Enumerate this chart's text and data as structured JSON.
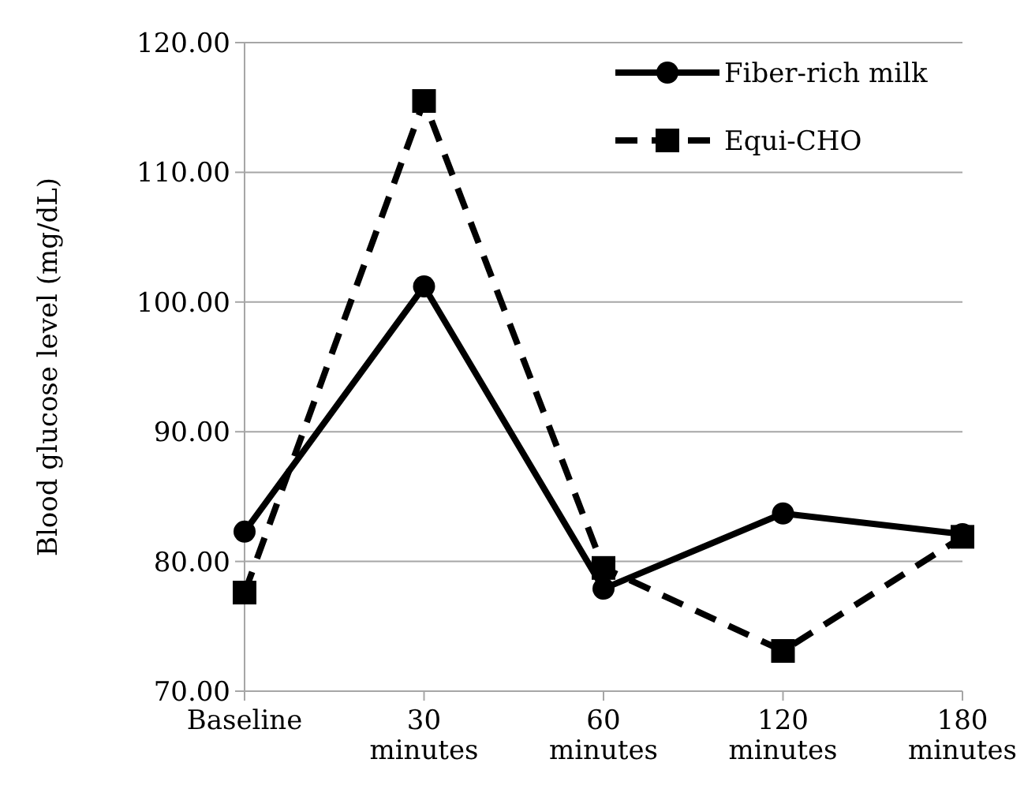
{
  "chart_data": {
    "type": "line",
    "ylabel": "Blood glucose level (mg/dL)",
    "categories": [
      "Baseline",
      "30 minutes",
      "60 minutes",
      "120 minutes",
      "180 minutes"
    ],
    "series": [
      {
        "name": "Fiber-rich milk",
        "color": "#000000",
        "values": [
          82.3,
          101.2,
          77.9,
          83.7,
          82.1
        ],
        "marker": "circle",
        "line_style": "solid"
      },
      {
        "name": "Equi-CHO",
        "color": "#000000",
        "values": [
          77.6,
          115.5,
          79.5,
          73.1,
          81.9
        ],
        "marker": "square",
        "line_style": "dashed"
      }
    ],
    "ylim": [
      70,
      120
    ],
    "yticks": [
      {
        "value": 70,
        "label": "70.00"
      },
      {
        "value": 80,
        "label": "80.00"
      },
      {
        "value": 90,
        "label": "90.00"
      },
      {
        "value": 100,
        "label": "100.00"
      },
      {
        "value": 110,
        "label": "110.00"
      },
      {
        "value": 120,
        "label": "120.00"
      }
    ],
    "grid": "y",
    "legend": "top right"
  }
}
